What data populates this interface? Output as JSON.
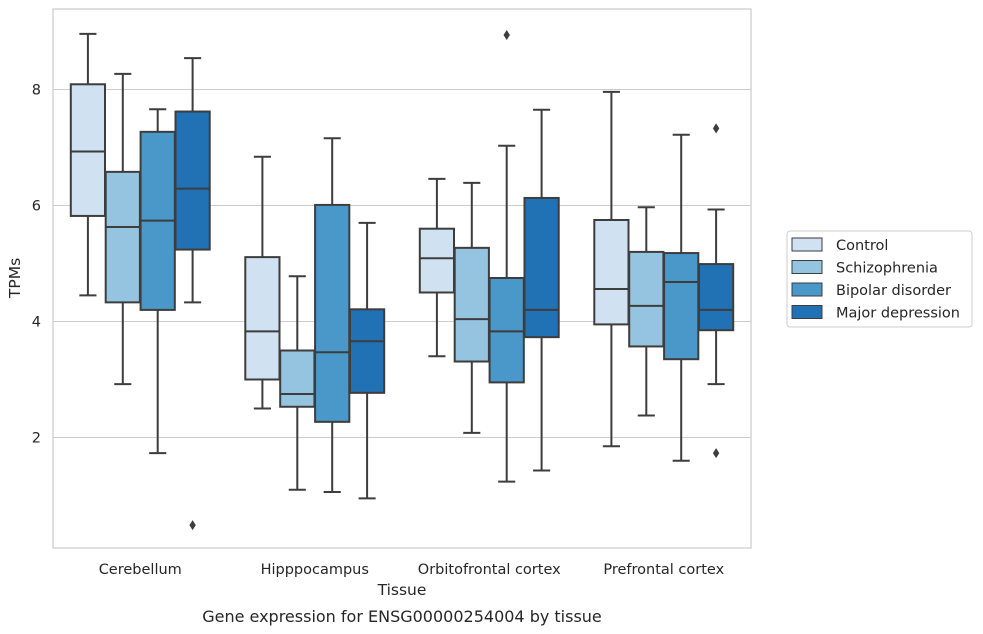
{
  "chart_data": {
    "type": "box",
    "categories": [
      "Cerebellum",
      "Hipppocampus",
      "Orbitofrontal cortex",
      "Prefrontal cortex"
    ],
    "xlabel": "Tissue",
    "ylabel": "TPMs",
    "caption": "Gene expression for ENSG00000254004 by tissue",
    "yticks": [
      2,
      4,
      6,
      8
    ],
    "ylim": [
      0.2,
      9.5
    ],
    "grid": "horizontal",
    "legend_placement": "right",
    "series": [
      {
        "name": "Control",
        "color": "#d0e1f2",
        "boxes": [
          {
            "whisker_low": 4.45,
            "q1": 5.82,
            "median": 6.93,
            "q3": 8.09,
            "whisker_high": 8.96,
            "outliers": []
          },
          {
            "whisker_low": 2.5,
            "q1": 3.0,
            "median": 3.83,
            "q3": 5.11,
            "whisker_high": 6.84,
            "outliers": []
          },
          {
            "whisker_low": 3.4,
            "q1": 4.5,
            "median": 5.09,
            "q3": 5.6,
            "whisker_high": 6.46,
            "outliers": []
          },
          {
            "whisker_low": 1.85,
            "q1": 3.95,
            "median": 4.56,
            "q3": 5.75,
            "whisker_high": 7.96,
            "outliers": []
          }
        ]
      },
      {
        "name": "Schizophrenia",
        "color": "#94c4df",
        "boxes": [
          {
            "whisker_low": 2.92,
            "q1": 4.33,
            "median": 5.63,
            "q3": 6.58,
            "whisker_high": 8.27,
            "outliers": []
          },
          {
            "whisker_low": 1.1,
            "q1": 2.53,
            "median": 2.75,
            "q3": 3.5,
            "whisker_high": 4.78,
            "outliers": []
          },
          {
            "whisker_low": 2.08,
            "q1": 3.31,
            "median": 4.04,
            "q3": 5.27,
            "whisker_high": 6.39,
            "outliers": []
          },
          {
            "whisker_low": 2.38,
            "q1": 3.57,
            "median": 4.27,
            "q3": 5.2,
            "whisker_high": 5.97,
            "outliers": []
          }
        ]
      },
      {
        "name": "Bipolar disorder",
        "color": "#4a98c9",
        "boxes": [
          {
            "whisker_low": 1.73,
            "q1": 4.2,
            "median": 5.74,
            "q3": 7.27,
            "whisker_high": 7.66,
            "outliers": []
          },
          {
            "whisker_low": 1.06,
            "q1": 2.27,
            "median": 3.47,
            "q3": 6.01,
            "whisker_high": 7.16,
            "outliers": []
          },
          {
            "whisker_low": 1.24,
            "q1": 2.95,
            "median": 3.83,
            "q3": 4.75,
            "whisker_high": 7.03,
            "outliers": [
              8.94
            ]
          },
          {
            "whisker_low": 1.6,
            "q1": 3.35,
            "median": 4.68,
            "q3": 5.18,
            "whisker_high": 7.22,
            "outliers": []
          }
        ]
      },
      {
        "name": "Major depression",
        "color": "#2171b5",
        "boxes": [
          {
            "whisker_low": 4.33,
            "q1": 5.24,
            "median": 6.29,
            "q3": 7.62,
            "whisker_high": 8.54,
            "outliers": [
              0.49
            ]
          },
          {
            "whisker_low": 0.95,
            "q1": 2.77,
            "median": 3.66,
            "q3": 4.21,
            "whisker_high": 5.7,
            "outliers": []
          },
          {
            "whisker_low": 1.43,
            "q1": 3.73,
            "median": 4.2,
            "q3": 6.13,
            "whisker_high": 7.65,
            "outliers": []
          },
          {
            "whisker_low": 2.92,
            "q1": 3.85,
            "median": 4.2,
            "q3": 4.99,
            "whisker_high": 5.93,
            "outliers": [
              7.33,
              1.73
            ]
          }
        ]
      }
    ]
  }
}
